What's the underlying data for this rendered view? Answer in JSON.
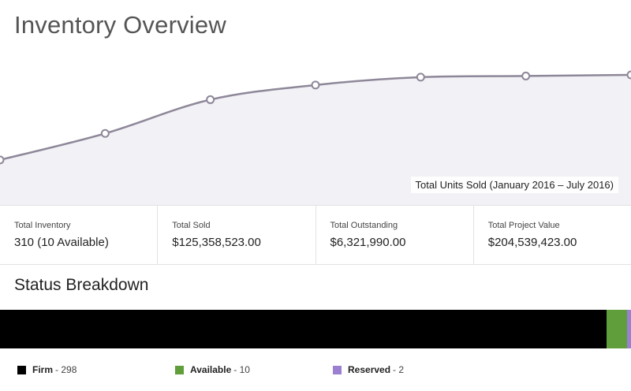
{
  "header": {
    "title": "Inventory Overview"
  },
  "chart_data": {
    "type": "line",
    "caption": "Total Units Sold (January 2016 – July 2016)",
    "series": [
      {
        "name": "Total Units Sold",
        "values": [
          30,
          77,
          137,
          163,
          177,
          179,
          181
        ]
      }
    ],
    "ylim": [
      -50,
      230
    ],
    "color": "#8e8799",
    "fill": "#f2f1f5"
  },
  "stats": [
    {
      "label": "Total Inventory",
      "value": "310 (10 Available)"
    },
    {
      "label": "Total Sold",
      "value": "$125,358,523.00"
    },
    {
      "label": "Total Outstanding",
      "value": "$6,321,990.00"
    },
    {
      "label": "Total Project Value",
      "value": "$204,539,423.00"
    }
  ],
  "status": {
    "title": "Status Breakdown",
    "items": [
      {
        "label": "Firm",
        "count": 298,
        "count_text": "- 298",
        "color": "#000000"
      },
      {
        "label": "Available",
        "count": 10,
        "count_text": "- 10",
        "color": "#5f9e3b"
      },
      {
        "label": "Reserved",
        "count": 2,
        "count_text": "- 2",
        "color": "#9b7fd0"
      }
    ]
  }
}
